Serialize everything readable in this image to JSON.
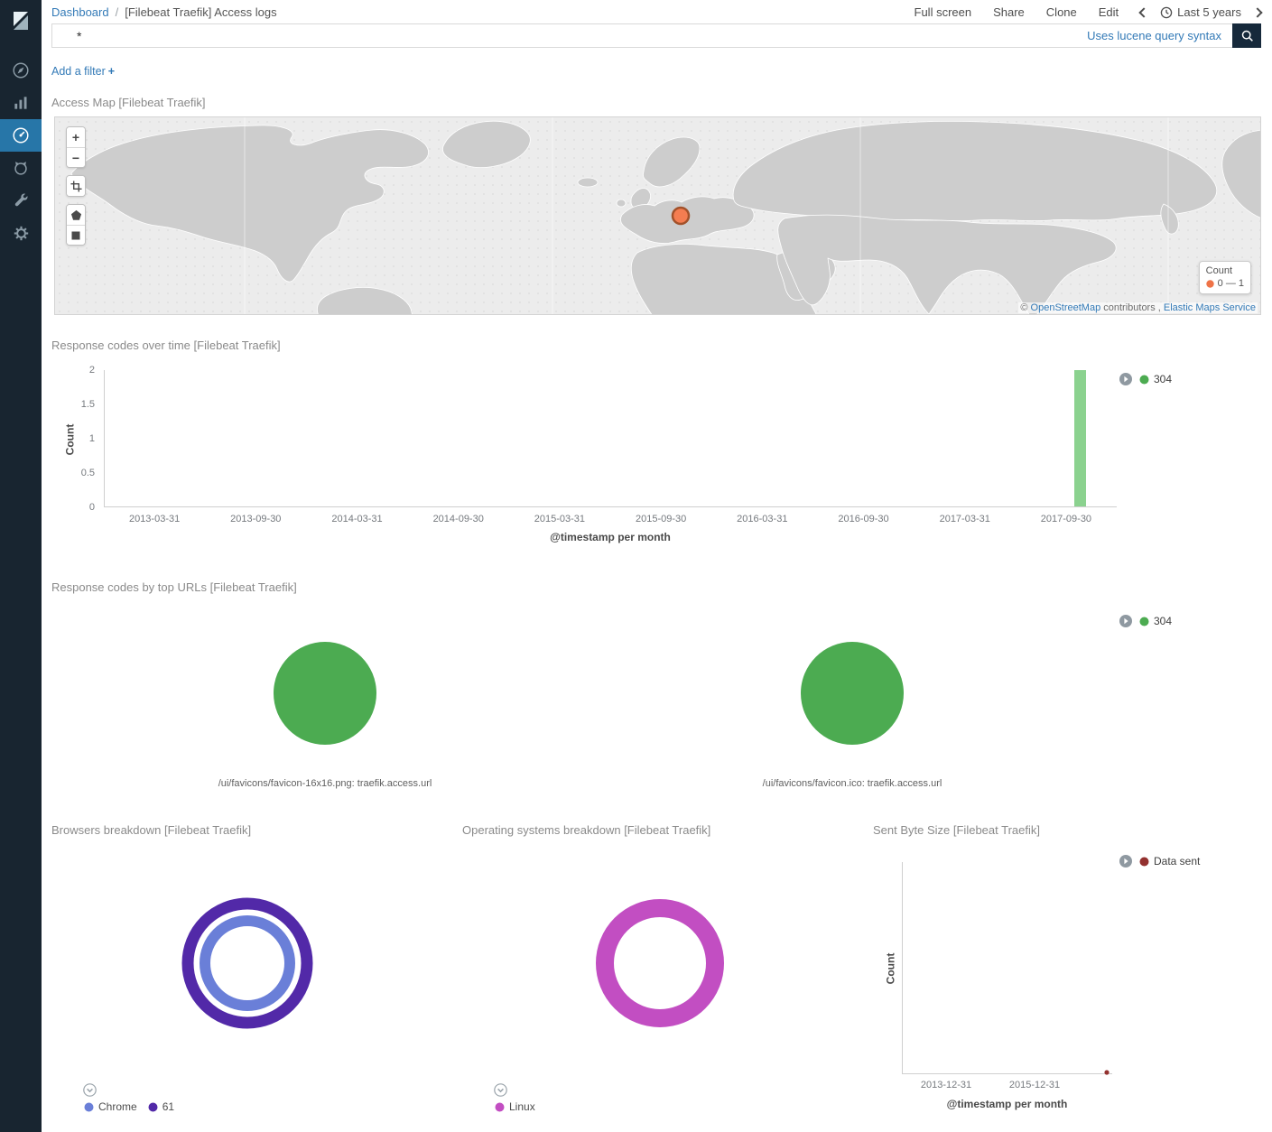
{
  "chrome": {
    "breadcrumb": {
      "root": "Dashboard",
      "separator": "/",
      "current": "[Filebeat Traefik] Access logs"
    },
    "actions": {
      "full_screen": "Full screen",
      "share": "Share",
      "clone": "Clone",
      "edit": "Edit"
    },
    "time_picker": {
      "label": "Last 5 years"
    },
    "query": {
      "value": "*",
      "syntax_hint": "Uses lucene query syntax"
    },
    "filter_bar": {
      "add_filter": "Add a filter",
      "plus": "+"
    }
  },
  "sidebar": {
    "items": [
      {
        "id": "discover",
        "icon": "compass-icon"
      },
      {
        "id": "visualize",
        "icon": "bar-chart-icon"
      },
      {
        "id": "dashboard",
        "icon": "gauge-icon",
        "active": true
      },
      {
        "id": "timelion",
        "icon": "lion-icon"
      },
      {
        "id": "dev-tools",
        "icon": "wrench-icon"
      },
      {
        "id": "management",
        "icon": "gear-icon"
      }
    ]
  },
  "panels": {
    "access_map": {
      "title": "Access Map [Filebeat Traefik]",
      "zoom_in": "+",
      "zoom_out": "−",
      "legend": {
        "title": "Count",
        "range": "0 — 1",
        "color": "#ef7347"
      },
      "marker": {
        "color": "#f47d51",
        "border": "#a2512a"
      },
      "attribution": {
        "copyright": "©",
        "osm": "OpenStreetMap",
        "contributors": "contributors ,",
        "ems": "Elastic Maps Service"
      }
    },
    "response_over_time": {
      "title": "Response codes over time [Filebeat Traefik]",
      "legend": [
        {
          "label": "304",
          "color": "#4cab51"
        }
      ],
      "chart": {
        "type": "bar",
        "ylabel": "Count",
        "xlabel": "@timestamp per month",
        "ylim": [
          0,
          2
        ],
        "y_ticks": [
          "2",
          "1.5",
          "1",
          "0.5",
          "0"
        ],
        "x_ticks": [
          "2013-03-31",
          "2013-09-30",
          "2014-03-31",
          "2014-09-30",
          "2015-03-31",
          "2015-09-30",
          "2016-03-31",
          "2016-09-30",
          "2017-03-31",
          "2017-09-30"
        ],
        "bars": [
          {
            "x": "2017-09-30",
            "series": "304",
            "value": 2,
            "color": "#8bd28f"
          }
        ]
      }
    },
    "top_urls": {
      "title": "Response codes by top URLs [Filebeat Traefik]",
      "legend": [
        {
          "label": "304",
          "color": "#4cab51"
        }
      ],
      "pies": [
        {
          "label": "/ui/favicons/favicon-16x16.png: traefik.access.url",
          "slices": [
            {
              "series": "304",
              "fraction": 1,
              "color": "#4cab51"
            }
          ]
        },
        {
          "label": "/ui/favicons/favicon.ico: traefik.access.url",
          "slices": [
            {
              "series": "304",
              "fraction": 1,
              "color": "#4cab51"
            }
          ]
        }
      ]
    },
    "browsers": {
      "title": "Browsers breakdown [Filebeat Traefik]",
      "legend": [
        {
          "label": "Chrome",
          "color": "#6a7fd8"
        },
        {
          "label": "61",
          "color": "#5229a8"
        }
      ],
      "rings": [
        {
          "series": "Chrome",
          "level": "inner",
          "fraction": 1,
          "color": "#6a7fd8"
        },
        {
          "series": "61",
          "level": "outer",
          "fraction": 1,
          "color": "#5229a8"
        }
      ]
    },
    "operating_systems": {
      "title": "Operating systems breakdown [Filebeat Traefik]",
      "legend": [
        {
          "label": "Linux",
          "color": "#c24ec2"
        }
      ],
      "rings": [
        {
          "series": "Linux",
          "level": "outer",
          "fraction": 1,
          "color": "#c24ec2"
        }
      ]
    },
    "sent_bytes": {
      "title": "Sent Byte Size [Filebeat Traefik]",
      "legend": [
        {
          "label": "Data sent",
          "color": "#93312f"
        }
      ],
      "chart": {
        "type": "line",
        "ylabel": "Count",
        "xlabel": "@timestamp per month",
        "x_ticks": [
          "2013-12-31",
          "2015-12-31"
        ],
        "point_color": "#93312f"
      }
    }
  },
  "colors": {
    "link": "#337ab7",
    "sidebar_bg": "#182530",
    "sidebar_active": "#2776a8",
    "search_button": "#16293b"
  }
}
